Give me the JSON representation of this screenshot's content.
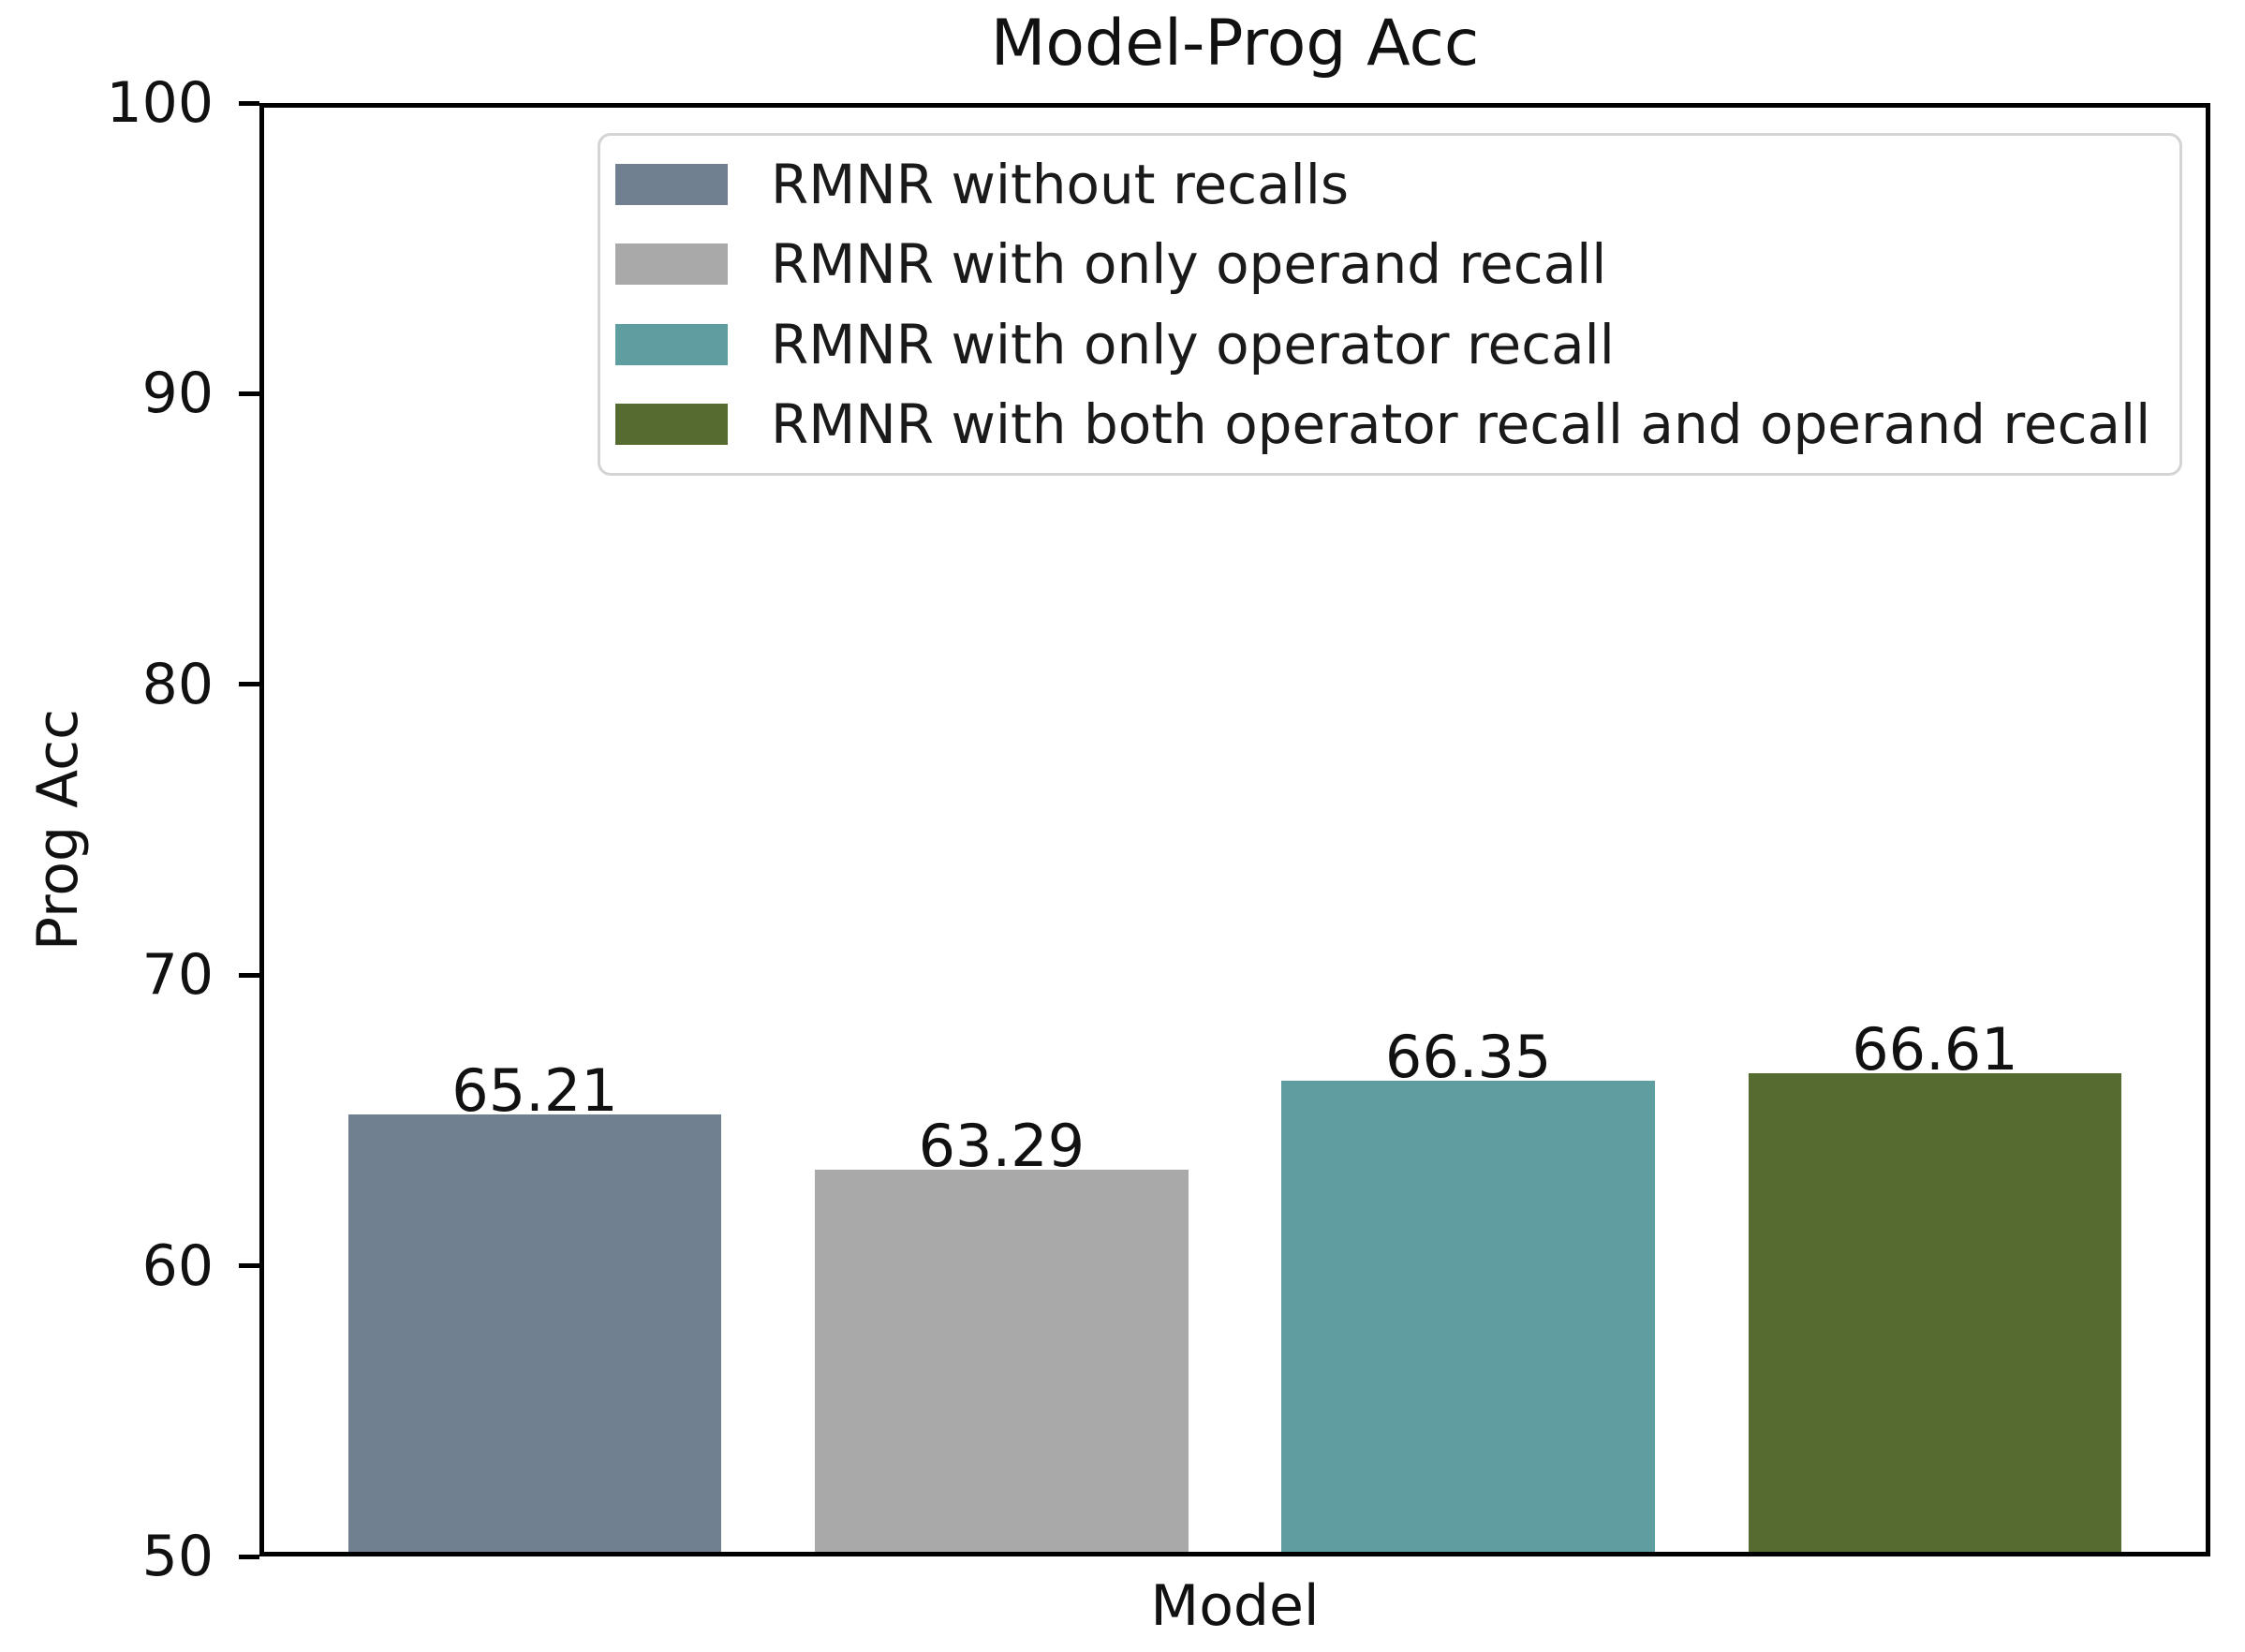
{
  "chart_data": {
    "type": "bar",
    "title": "Model-Prog Acc",
    "xlabel": "Model",
    "ylabel": "Prog Acc",
    "ylim": [
      50,
      100
    ],
    "yticks": [
      50,
      60,
      70,
      80,
      90,
      100
    ],
    "grid": false,
    "legend_position": "upper center inside",
    "bars": [
      {
        "label": "RMNR without recalls",
        "value": 65.21,
        "value_label": "65.21",
        "color": "#708090"
      },
      {
        "label": "RMNR with only operand recall",
        "value": 63.29,
        "value_label": "63.29",
        "color": "#a9a9a9"
      },
      {
        "label": "RMNR with only operator recall",
        "value": 66.35,
        "value_label": "66.35",
        "color": "#5f9ea0"
      },
      {
        "label": "RMNR with both operator recall and operand recall",
        "value": 66.61,
        "value_label": "66.61",
        "color": "#556b2f"
      }
    ]
  }
}
